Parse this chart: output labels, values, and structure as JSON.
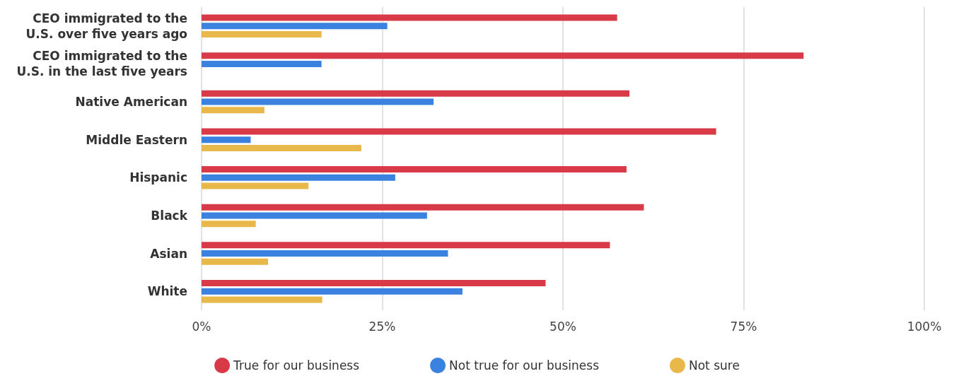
{
  "chart_data": {
    "type": "bar",
    "orientation": "horizontal",
    "categories": [
      "CEO immigrated to the\nU.S. over five years ago",
      "CEO immigrated to the\nU.S. in the last five years",
      "Native American",
      "Middle Eastern",
      "Hispanic",
      "Black",
      "Asian",
      "White"
    ],
    "series": [
      {
        "name": "True for our business",
        "color": "#d93a47",
        "values": [
          57.5,
          83.3,
          59.2,
          71.2,
          58.8,
          61.2,
          56.5,
          47.6
        ]
      },
      {
        "name": "Not true for our business",
        "color": "#3b82e0",
        "values": [
          25.7,
          16.6,
          32.1,
          6.8,
          26.8,
          31.2,
          34.1,
          36.1
        ]
      },
      {
        "name": "Not sure",
        "color": "#e8b84a",
        "values": [
          16.6,
          0,
          8.7,
          22.1,
          14.8,
          7.5,
          9.2,
          16.7
        ]
      }
    ],
    "xlim": [
      0,
      100
    ],
    "xticks": [
      {
        "value": 0,
        "label": "0%"
      },
      {
        "value": 25,
        "label": "25%"
      },
      {
        "value": 50,
        "label": "50%"
      },
      {
        "value": 75,
        "label": "75%"
      },
      {
        "value": 100,
        "label": "100%"
      }
    ],
    "grid": "x",
    "legend": "bottom"
  }
}
